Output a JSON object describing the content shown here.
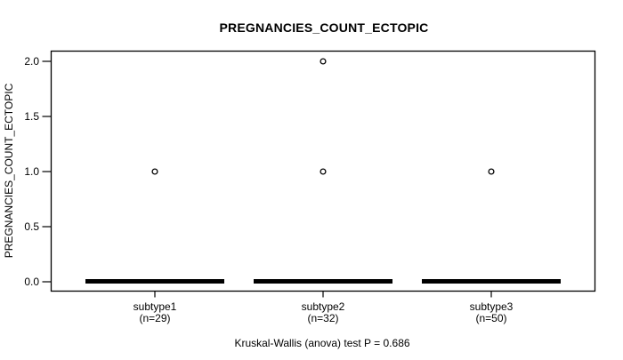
{
  "figure": {
    "title": "PREGNANCIES_COUNT_ECTOPIC",
    "caption": "Kruskal-Wallis (anova) test P = 0.686"
  },
  "chart_data": {
    "type": "boxplot",
    "title": "PREGNANCIES_COUNT_ECTOPIC",
    "ylabel": "PREGNANCIES_COUNT_ECTOPIC",
    "xlabel": "",
    "annotation": "Kruskal-Wallis (anova) test P = 0.686",
    "stat_test": {
      "name": "Kruskal-Wallis (anova)",
      "p_value": 0.686
    },
    "categories": [
      "subtype1",
      "subtype2",
      "subtype3"
    ],
    "category_sublabels": [
      "(n=29)",
      "(n=32)",
      "(n=50)"
    ],
    "groups": [
      {
        "label": "subtype1",
        "sublabel": "(n=29)",
        "n": 29,
        "median": 0,
        "q1": 0,
        "q3": 0,
        "whisker_low": 0,
        "whisker_high": 0,
        "outliers": [
          1.0
        ]
      },
      {
        "label": "subtype2",
        "sublabel": "(n=32)",
        "n": 32,
        "median": 0,
        "q1": 0,
        "q3": 0,
        "whisker_low": 0,
        "whisker_high": 0,
        "outliers": [
          1.0,
          2.0
        ]
      },
      {
        "label": "subtype3",
        "sublabel": "(n=50)",
        "n": 50,
        "median": 0,
        "q1": 0,
        "q3": 0,
        "whisker_low": 0,
        "whisker_high": 0,
        "outliers": [
          1.0
        ]
      }
    ],
    "ylim": [
      0,
      2
    ],
    "yticks": [
      0.0,
      0.5,
      1.0,
      1.5,
      2.0
    ],
    "ytick_labels": [
      "0.0",
      "0.5",
      "1.0",
      "1.5",
      "2.0"
    ],
    "grid": false,
    "legend": null,
    "colors": {
      "stroke": "#000000",
      "fill": "#ffffff",
      "background": "#ffffff"
    }
  }
}
